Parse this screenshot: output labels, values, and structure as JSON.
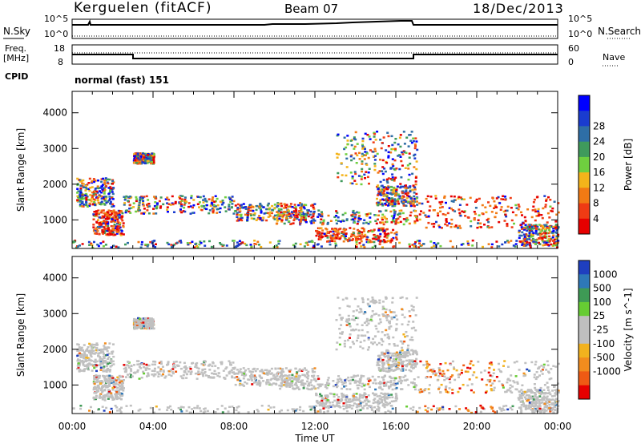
{
  "header": {
    "station": "Kerguelen (fitACF)",
    "beam": "Beam 07",
    "date": "18/Dec/2013"
  },
  "aux_labels": {
    "nsky": "N.Sky",
    "nsky_hi": "10^5",
    "nsky_lo": "10^0",
    "nsearch": "N.Search",
    "nsearch_hi": "10^5",
    "nsearch_lo": "10^0",
    "freq_line1": "Freq.",
    "freq_line2": "[MHz]",
    "freq_hi": "18",
    "freq_lo": "8",
    "nave_hi": "60",
    "nave_lo": "0",
    "nave": "Nave",
    "cpid": "CPID",
    "cpid_value": "normal (fast) 151"
  },
  "chart_data": [
    {
      "type": "heatmap",
      "name": "power",
      "ylabel": "Slant Range [km]",
      "yticks": [
        1000,
        2000,
        3000,
        4000
      ],
      "ylim": [
        200,
        4600
      ],
      "xlim": [
        0,
        24
      ],
      "colorbar": {
        "label": "Power [dB]",
        "ticks": [
          "4",
          "8",
          "12",
          "16",
          "20",
          "24",
          "28"
        ],
        "colors": [
          "#0000ff",
          "#1a3ccf",
          "#2e6ea6",
          "#3f9a5c",
          "#6fcf3f",
          "#f4b41a",
          "#f27a14",
          "#ef3b14",
          "#e60000"
        ]
      }
    },
    {
      "type": "heatmap",
      "name": "velocity",
      "ylabel": "Slant Range [km]",
      "yticks": [
        1000,
        2000,
        3000,
        4000
      ],
      "ylim": [
        200,
        4600
      ],
      "xlim": [
        0,
        24
      ],
      "xticks": [
        "00:00",
        "04:00",
        "08:00",
        "12:00",
        "16:00",
        "20:00",
        "00:00"
      ],
      "xlabel": "Time UT",
      "colorbar": {
        "label": "Velocity [m s^-1]",
        "ticks": [
          "1000",
          "500",
          "100",
          "25",
          "-25",
          "-100",
          "-500",
          "-1000"
        ],
        "colors": [
          "#1f3fbf",
          "#2e78b8",
          "#3e9a55",
          "#66cc33",
          "#bfbfbf",
          "#bfbfbf",
          "#f2b21e",
          "#f28c1e",
          "#ef5a14",
          "#e60000"
        ]
      }
    }
  ],
  "colors": {
    "grey": "#c0c0c0",
    "frame": "#000000"
  }
}
